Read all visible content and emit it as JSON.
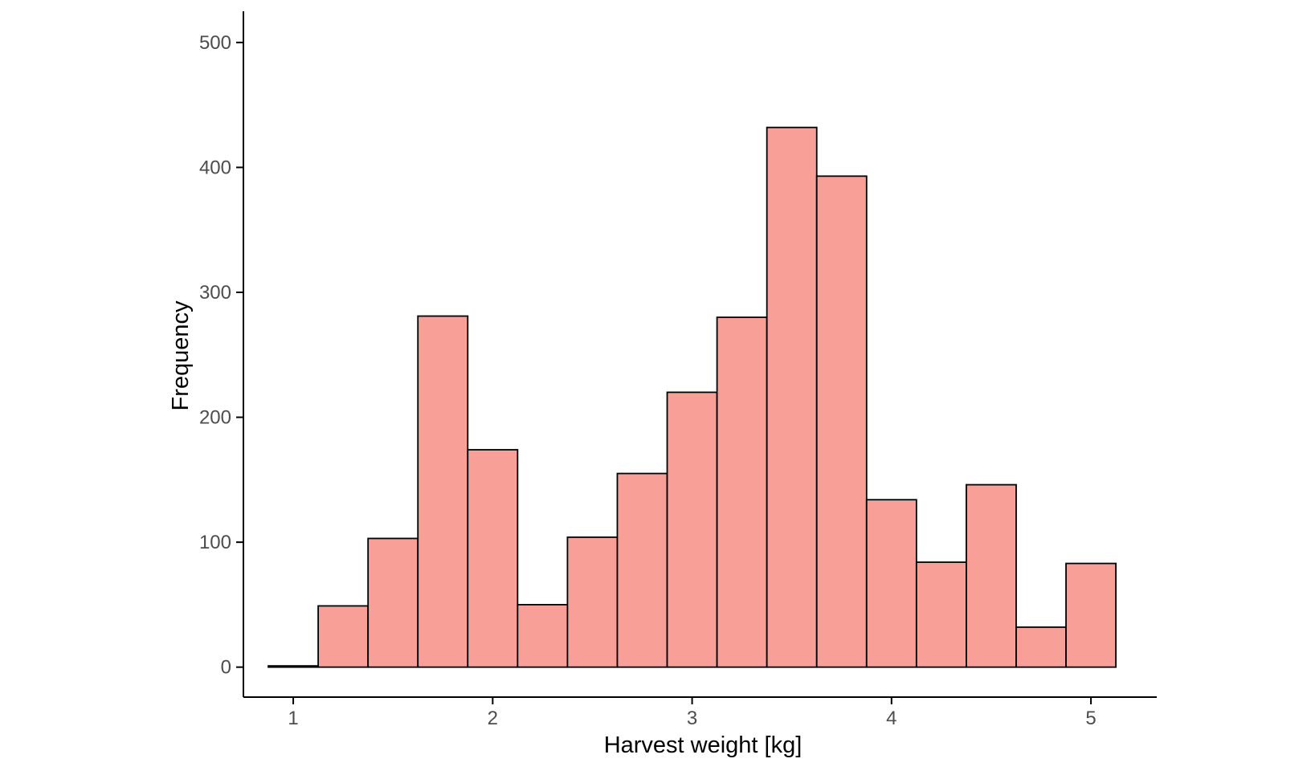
{
  "chart_data": {
    "type": "bar",
    "subtype": "histogram",
    "title": "",
    "xlabel": "Harvest weight [kg]",
    "ylabel": "Frequency",
    "bin_width": 0.25,
    "bins": [
      {
        "x0": 0.875,
        "x1": 1.125,
        "count": 1
      },
      {
        "x0": 1.125,
        "x1": 1.375,
        "count": 49
      },
      {
        "x0": 1.375,
        "x1": 1.625,
        "count": 103
      },
      {
        "x0": 1.625,
        "x1": 1.875,
        "count": 281
      },
      {
        "x0": 1.875,
        "x1": 2.125,
        "count": 174
      },
      {
        "x0": 2.125,
        "x1": 2.375,
        "count": 50
      },
      {
        "x0": 2.375,
        "x1": 2.625,
        "count": 104
      },
      {
        "x0": 2.625,
        "x1": 2.875,
        "count": 155
      },
      {
        "x0": 2.875,
        "x1": 3.125,
        "count": 220
      },
      {
        "x0": 3.125,
        "x1": 3.375,
        "count": 280
      },
      {
        "x0": 3.375,
        "x1": 3.625,
        "count": 432
      },
      {
        "x0": 3.625,
        "x1": 3.875,
        "count": 393
      },
      {
        "x0": 3.875,
        "x1": 4.125,
        "count": 134
      },
      {
        "x0": 4.125,
        "x1": 4.375,
        "count": 84
      },
      {
        "x0": 4.375,
        "x1": 4.625,
        "count": 146
      },
      {
        "x0": 4.625,
        "x1": 4.875,
        "count": 32
      },
      {
        "x0": 4.875,
        "x1": 5.125,
        "count": 83
      }
    ],
    "xlim": [
      0.75,
      5.33
    ],
    "ylim": [
      -24,
      525
    ],
    "x_ticks": [
      1,
      2,
      3,
      4,
      5
    ],
    "x_tick_labels": [
      "1",
      "2",
      "3",
      "4",
      "5"
    ],
    "y_ticks": [
      0,
      100,
      200,
      300,
      400,
      500
    ],
    "y_tick_labels": [
      "0",
      "100",
      "200",
      "300",
      "400",
      "500"
    ],
    "grid": false,
    "legend": "none",
    "colors": {
      "bar_fill": "#f8a097",
      "bar_stroke": "#000000",
      "axis": "#000000",
      "tick_label": "#4d4d4d",
      "axis_title": "#000000",
      "background": "#ffffff"
    }
  }
}
